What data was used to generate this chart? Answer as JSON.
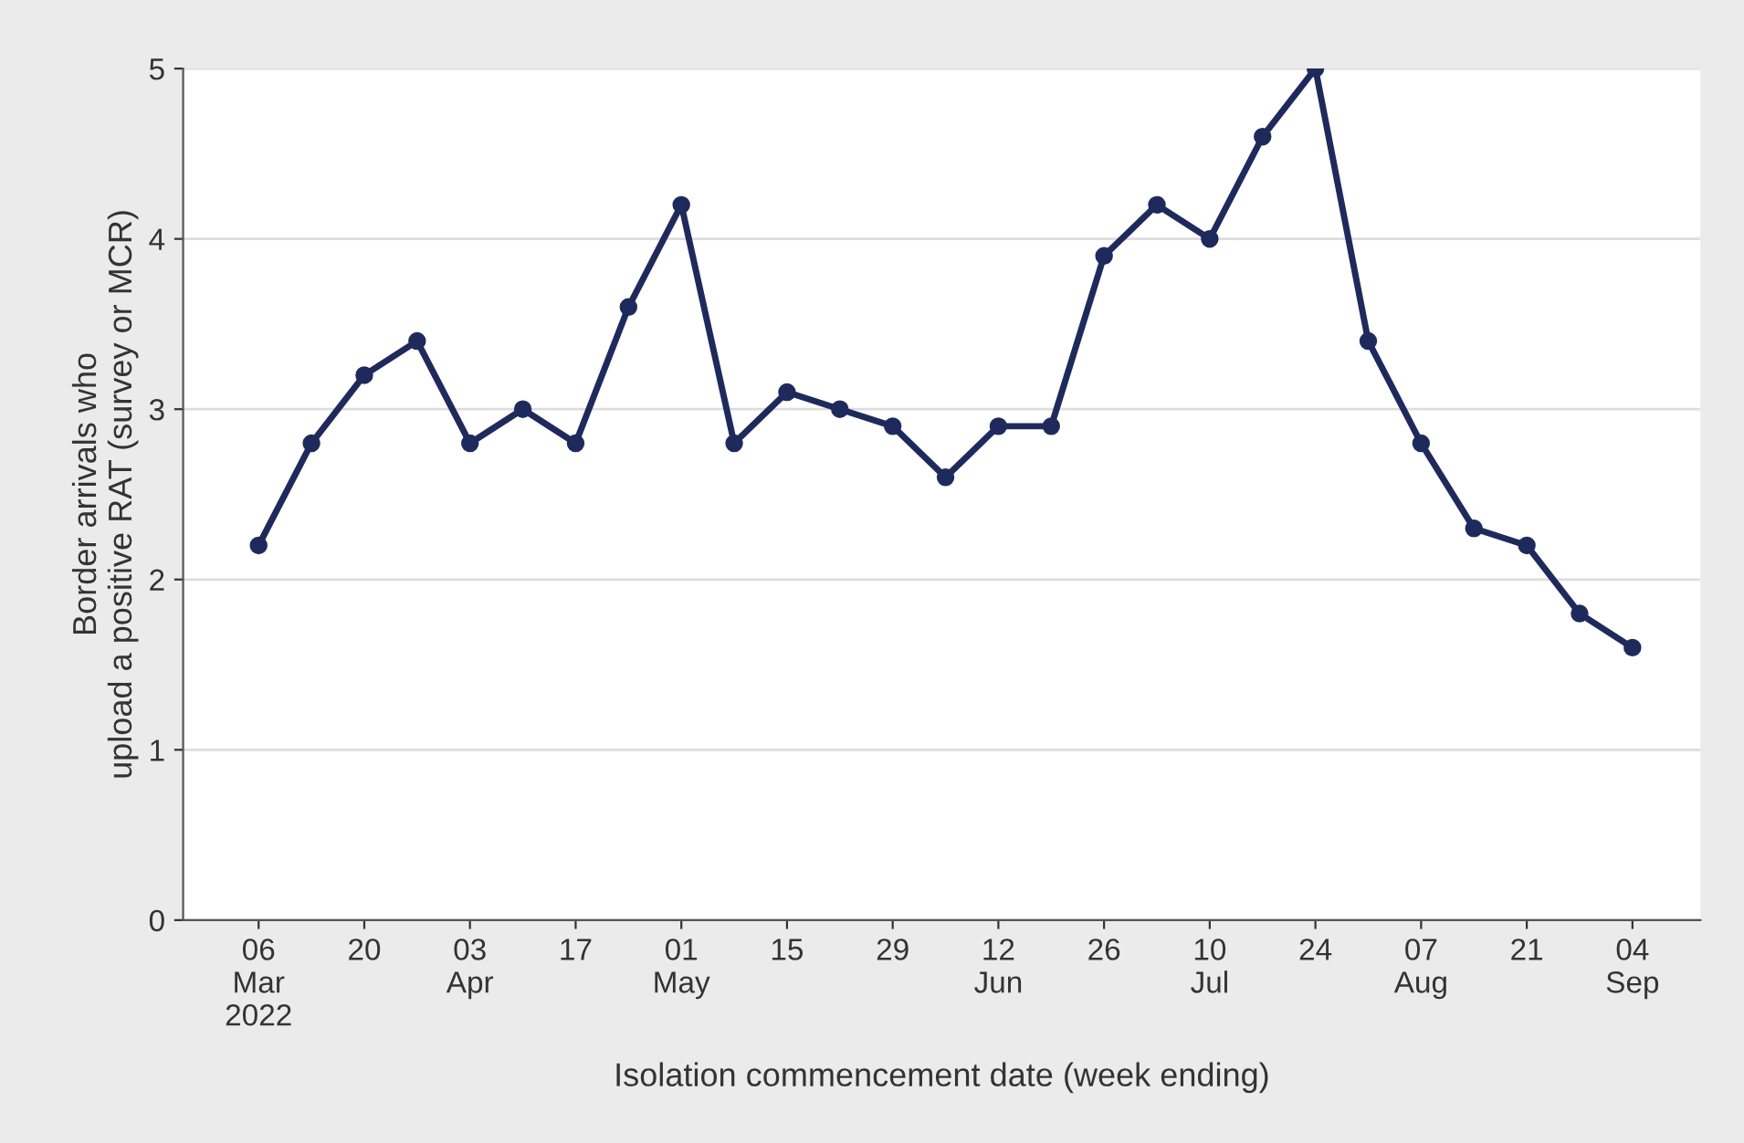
{
  "chart_data": {
    "type": "line",
    "xlabel": "Isolation commencement date (week ending)",
    "ylabel": "Border arrivals who\nupload a positive RAT (survey or MCR)",
    "x": [
      "2022-03-06",
      "2022-03-13",
      "2022-03-20",
      "2022-03-27",
      "2022-04-03",
      "2022-04-10",
      "2022-04-17",
      "2022-04-24",
      "2022-05-01",
      "2022-05-08",
      "2022-05-15",
      "2022-05-22",
      "2022-05-29",
      "2022-06-05",
      "2022-06-12",
      "2022-06-19",
      "2022-06-26",
      "2022-07-03",
      "2022-07-10",
      "2022-07-17",
      "2022-07-24",
      "2022-07-31",
      "2022-08-07",
      "2022-08-14",
      "2022-08-21",
      "2022-08-28",
      "2022-09-04"
    ],
    "series": [
      {
        "color": "#1f2a5c",
        "values": [
          2.2,
          2.8,
          3.2,
          3.4,
          2.8,
          3.0,
          2.8,
          3.6,
          4.2,
          2.8,
          3.1,
          3.0,
          2.9,
          2.6,
          2.9,
          2.9,
          3.9,
          4.2,
          4.0,
          4.6,
          5.0,
          3.4,
          2.8,
          2.3,
          2.2,
          1.8,
          1.6
        ]
      }
    ],
    "xlim": [
      "2022-02-24",
      "2022-09-13"
    ],
    "xticks": [
      {
        "value": "2022-03-06",
        "label": "06\nMar\n2022"
      },
      {
        "value": "2022-03-20",
        "label": "20"
      },
      {
        "value": "2022-04-03",
        "label": "03\nApr"
      },
      {
        "value": "2022-04-17",
        "label": "17"
      },
      {
        "value": "2022-05-01",
        "label": "01\nMay"
      },
      {
        "value": "2022-05-15",
        "label": "15"
      },
      {
        "value": "2022-05-29",
        "label": "29"
      },
      {
        "value": "2022-06-12",
        "label": "12\nJun"
      },
      {
        "value": "2022-06-26",
        "label": "26"
      },
      {
        "value": "2022-07-10",
        "label": "10\nJul"
      },
      {
        "value": "2022-07-24",
        "label": "24"
      },
      {
        "value": "2022-08-07",
        "label": "07\nAug"
      },
      {
        "value": "2022-08-21",
        "label": "21"
      },
      {
        "value": "2022-09-04",
        "label": "04\nSep"
      }
    ],
    "ylim": [
      0,
      5
    ],
    "yticks": [
      0,
      1,
      2,
      3,
      4,
      5
    ],
    "grid": "y",
    "marker": "circle",
    "line_style": "solid",
    "legend": false
  }
}
